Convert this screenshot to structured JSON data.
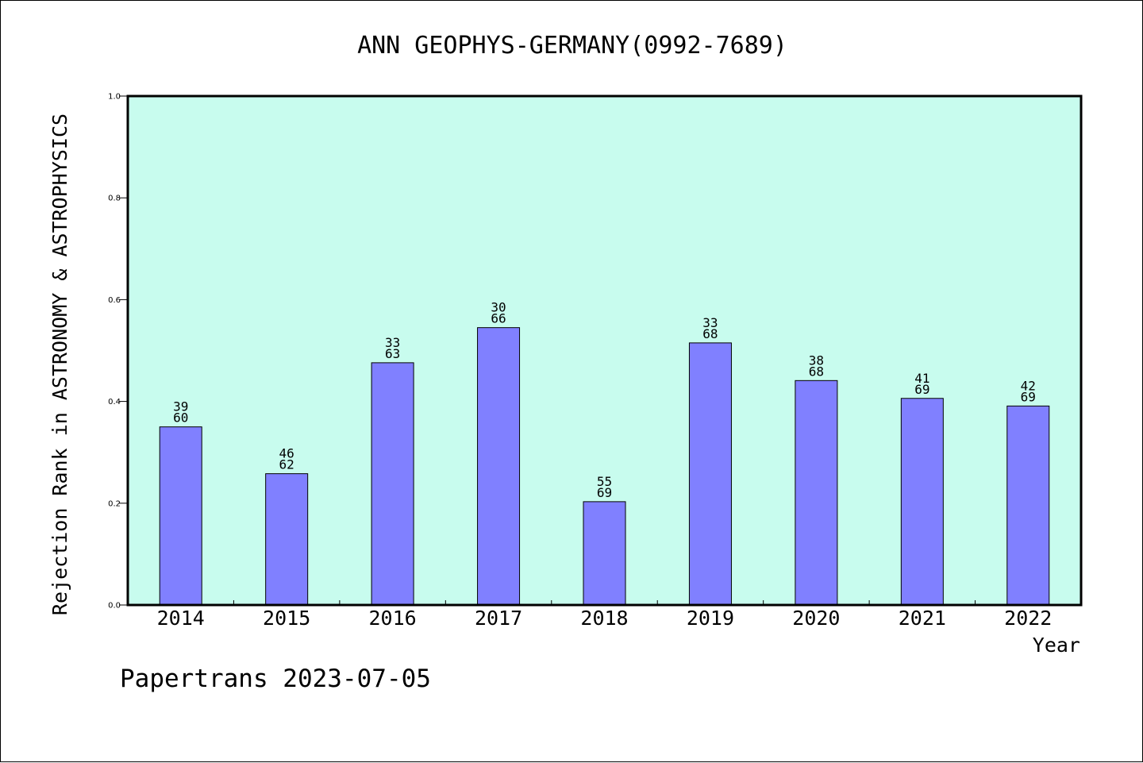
{
  "chart_data": {
    "type": "bar",
    "title": "ANN GEOPHYS-GERMANY(0992-7689)",
    "xlabel": "Year",
    "ylabel": "Rejection Rank in ASTRONOMY & ASTROPHYSICS",
    "ylim": [
      0,
      1.0
    ],
    "yticks": [
      "0.0",
      "0.2",
      "0.4",
      "0.6",
      "0.8",
      "1.0"
    ],
    "categories": [
      "2014",
      "2015",
      "2016",
      "2017",
      "2018",
      "2019",
      "2020",
      "2021",
      "2022"
    ],
    "values": [
      0.35,
      0.258,
      0.476,
      0.545,
      0.203,
      0.515,
      0.441,
      0.406,
      0.391
    ],
    "labels_top": [
      "39",
      "46",
      "33",
      "30",
      "55",
      "33",
      "38",
      "41",
      "42"
    ],
    "labels_bottom": [
      "60",
      "62",
      "63",
      "66",
      "69",
      "68",
      "68",
      "69",
      "69"
    ],
    "bar_color": "#8080ff",
    "plot_background": "#c8fcee",
    "grid": false,
    "legend": "none"
  },
  "footer": "Papertrans 2023-07-05"
}
